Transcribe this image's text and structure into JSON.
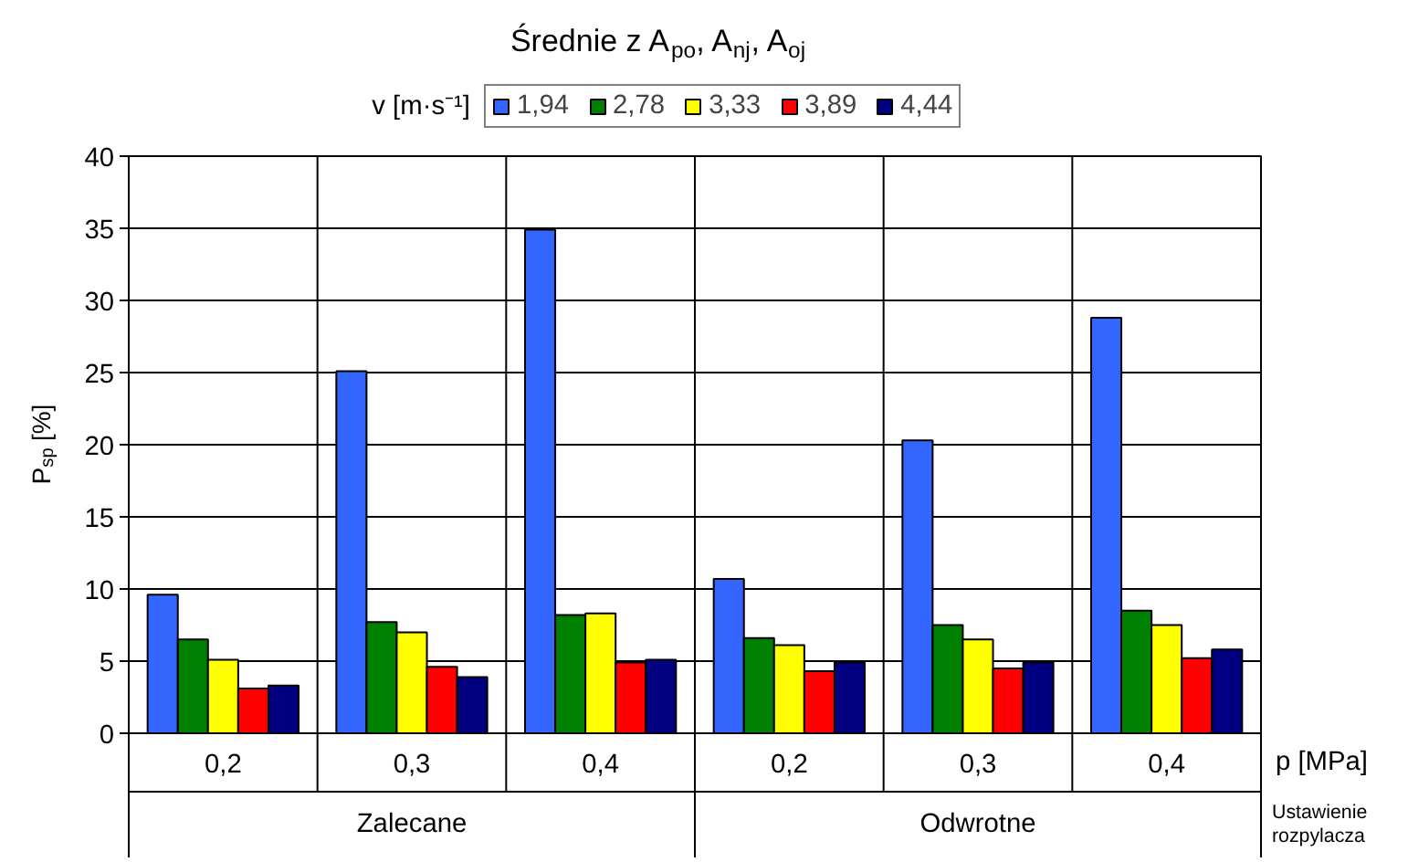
{
  "chart_data": {
    "type": "bar",
    "title": "Średnie z A$_{po}$, A$_{nj}$, A$_{oj}$",
    "ylabel": "P$_{sp}$ [%]",
    "legend_title": "v [m·s⁻¹]",
    "categories": [
      "0,2",
      "0,3",
      "0,4",
      "0,2",
      "0,3",
      "0,4"
    ],
    "series": [
      {
        "name": "1,94",
        "color": "#3366ff",
        "values": [
          9.6,
          25.1,
          34.9,
          10.7,
          20.3,
          28.8
        ]
      },
      {
        "name": "2,78",
        "color": "#008000",
        "values": [
          6.5,
          7.7,
          8.2,
          6.6,
          7.5,
          8.5
        ]
      },
      {
        "name": "3,33",
        "color": "#ffff00",
        "values": [
          5.1,
          7.0,
          8.3,
          6.1,
          6.5,
          7.5
        ]
      },
      {
        "name": "3,89",
        "color": "#ff0000",
        "values": [
          3.1,
          4.6,
          4.9,
          4.3,
          4.5,
          5.2
        ]
      },
      {
        "name": "4,44",
        "color": "#000080",
        "values": [
          3.3,
          3.9,
          5.1,
          4.9,
          4.9,
          5.8
        ]
      }
    ],
    "ylim": [
      0,
      40
    ],
    "yticks": [
      0,
      5,
      10,
      15,
      20,
      25,
      30,
      35,
      40
    ],
    "grid": true,
    "legend": "top",
    "annotations": [
      "Zalecane",
      "Odwrotne",
      "p [MPa]",
      "Ustawienie rozpylacza"
    ]
  }
}
